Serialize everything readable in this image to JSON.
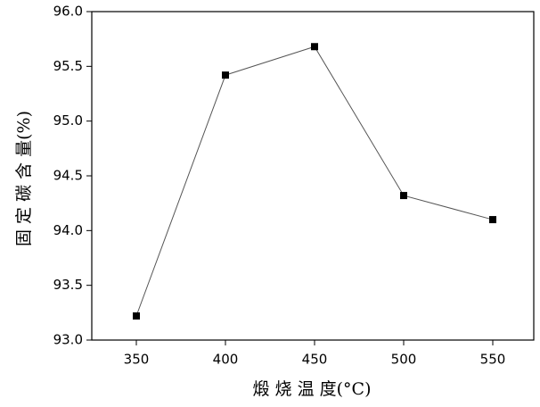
{
  "chart_data": {
    "type": "line",
    "x_label": "煅 烧 温 度(°C)",
    "y_label": "固 定 碳 含 量(%)",
    "x": [
      350,
      400,
      450,
      500,
      550
    ],
    "series": [
      {
        "color": "#000000",
        "values": [
          93.22,
          95.42,
          95.68,
          94.32,
          94.1
        ]
      }
    ],
    "xlim": [
      325,
      573
    ],
    "xticks": [
      350,
      400,
      450,
      500,
      550
    ],
    "ylim": [
      93.0,
      96.0
    ],
    "yticks": [
      {
        "value": 93.0,
        "label": "93.0"
      },
      93.5,
      {
        "value": 94.0,
        "label": "94.0"
      },
      94.5,
      {
        "value": 95.0,
        "label": "95.0"
      },
      95.5,
      {
        "value": 96.0,
        "label": "96.0"
      }
    ]
  }
}
